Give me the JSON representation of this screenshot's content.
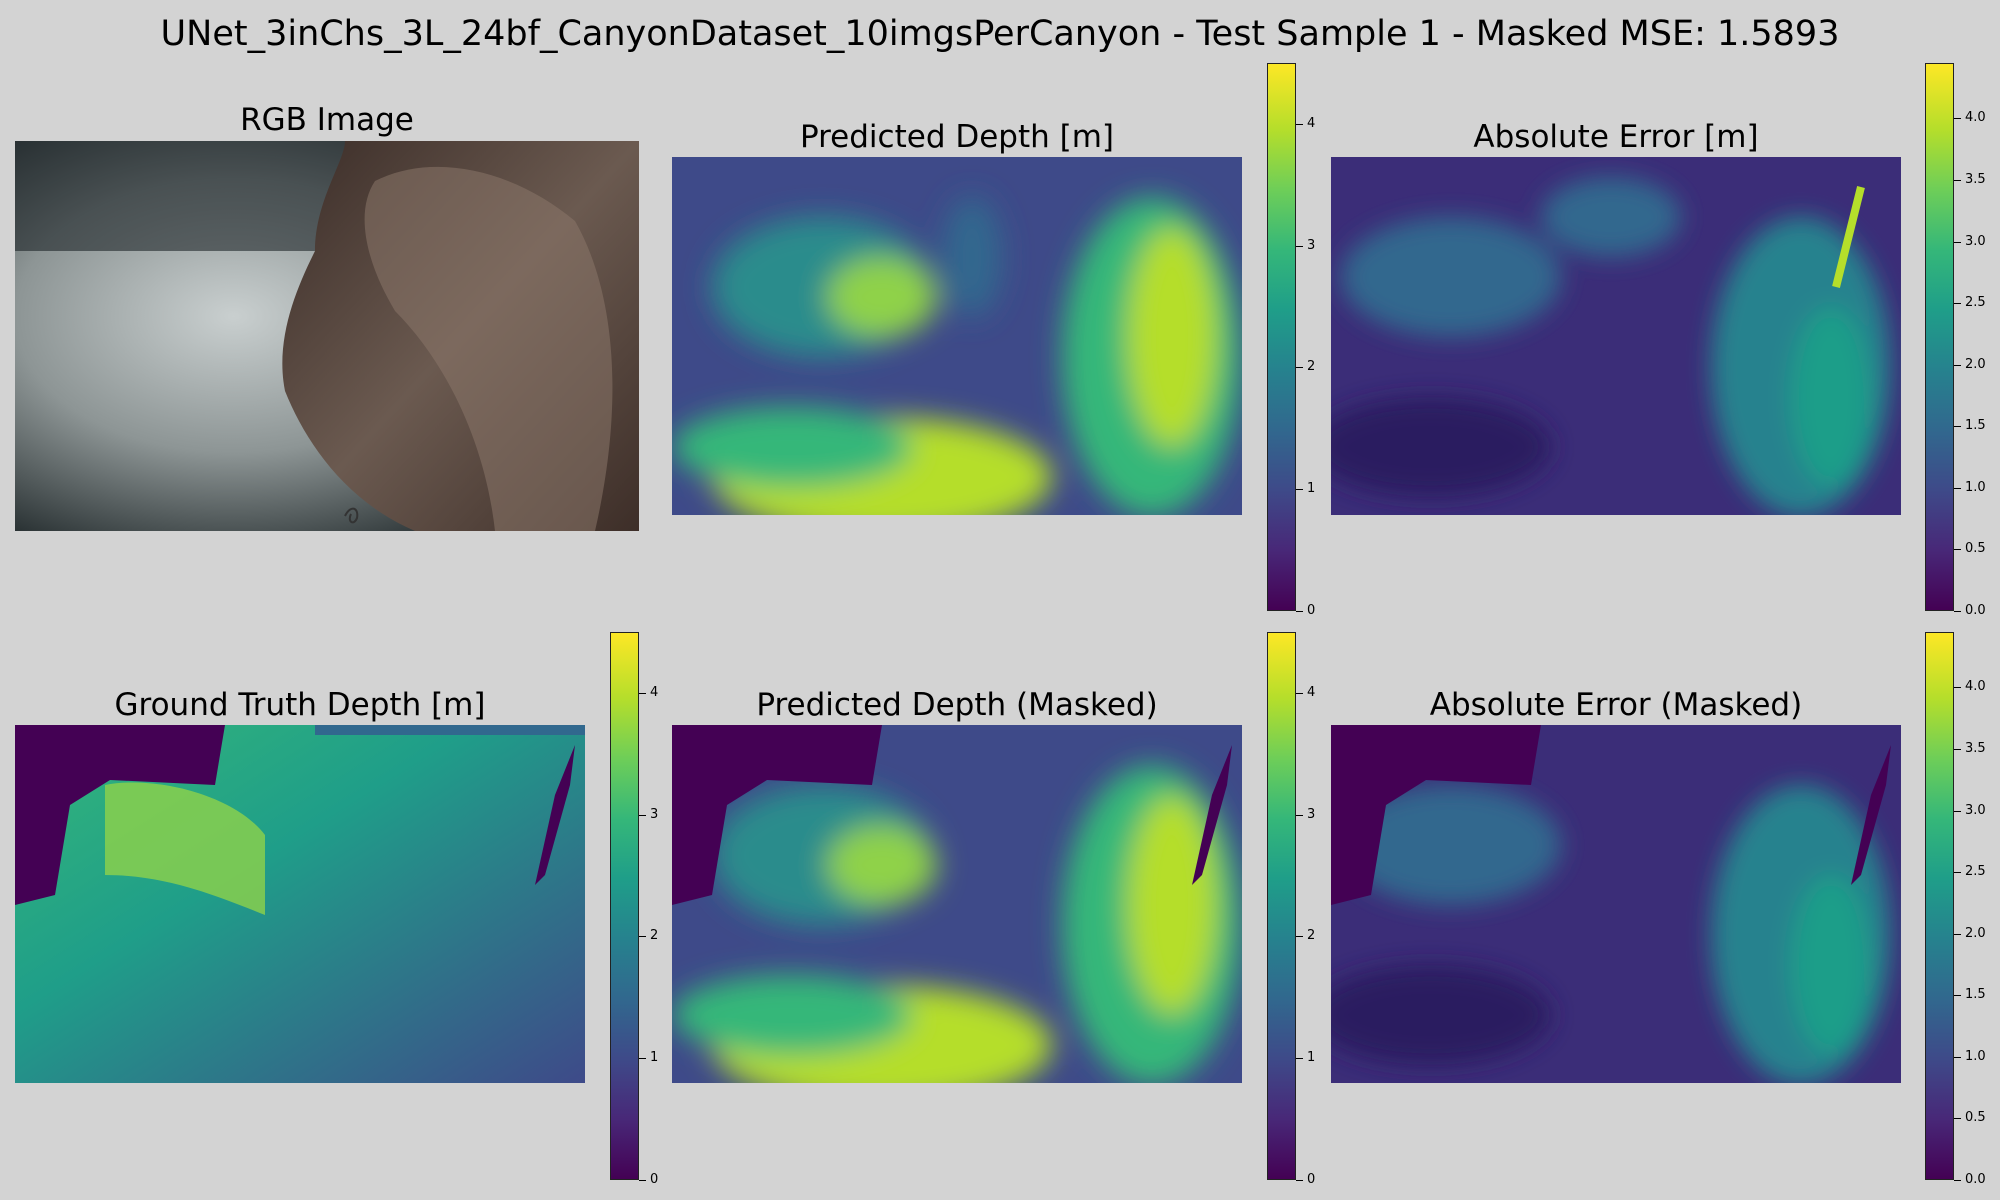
{
  "suptitle": "UNet_3inChs_3L_24bf_CanyonDataset_10imgsPerCanyon - Test Sample 1 - Masked MSE: 1.5893",
  "colormap": "viridis",
  "colormap_stops": [
    "#440154",
    "#482878",
    "#3e4a89",
    "#31688e",
    "#26828e",
    "#1f9e89",
    "#35b779",
    "#6ece58",
    "#b5de2b",
    "#fde725"
  ],
  "background_color": "#d3d3d3",
  "panels": {
    "rgb": {
      "title": "RGB Image"
    },
    "pred": {
      "title": "Predicted Depth [m]"
    },
    "err": {
      "title": "Absolute Error [m]"
    },
    "gt": {
      "title": "Ground Truth Depth [m]"
    },
    "predm": {
      "title": "Predicted Depth (Masked)"
    },
    "errm": {
      "title": "Absolute Error (Masked)"
    }
  },
  "chart_data": [
    {
      "type": "heatmap",
      "title": "RGB Image",
      "description_type": "photo"
    },
    {
      "type": "heatmap",
      "title": "Predicted Depth [m]",
      "colorbar": {
        "range": [
          0,
          4.5
        ],
        "ticks": [
          "0",
          "1",
          "2",
          "3",
          "4"
        ]
      }
    },
    {
      "type": "heatmap",
      "title": "Absolute Error [m]",
      "colorbar": {
        "range": [
          0,
          4.45
        ],
        "ticks": [
          "0.0",
          "0.5",
          "1.0",
          "1.5",
          "2.0",
          "2.5",
          "3.0",
          "3.5",
          "4.0"
        ]
      }
    },
    {
      "type": "heatmap",
      "title": "Ground Truth Depth [m]",
      "colorbar": {
        "range": [
          0,
          4.5
        ],
        "ticks": [
          "0",
          "1",
          "2",
          "3",
          "4"
        ]
      }
    },
    {
      "type": "heatmap",
      "title": "Predicted Depth (Masked)",
      "colorbar": {
        "range": [
          0,
          4.5
        ],
        "ticks": [
          "0",
          "1",
          "2",
          "3",
          "4"
        ]
      }
    },
    {
      "type": "heatmap",
      "title": "Absolute Error (Masked)",
      "colorbar": {
        "range": [
          0,
          4.45
        ],
        "ticks": [
          "0.0",
          "0.5",
          "1.0",
          "1.5",
          "2.0",
          "2.5",
          "3.0",
          "3.5",
          "4.0"
        ]
      }
    }
  ]
}
